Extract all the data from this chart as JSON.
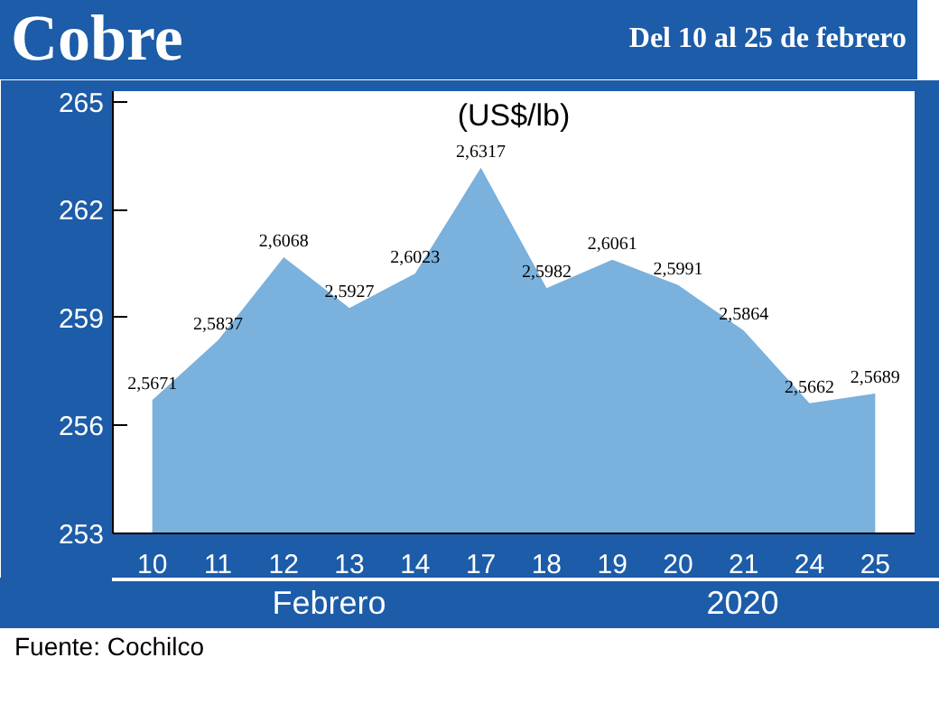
{
  "chart_data": {
    "type": "area",
    "title": "Cobre",
    "subtitle": "Del 10 al 25 de febrero",
    "ylabel": "(US$/lb)",
    "xlabel": "Febrero",
    "categories": [
      "10",
      "11",
      "12",
      "13",
      "14",
      "17",
      "18",
      "19",
      "20",
      "21",
      "24",
      "25"
    ],
    "series": [
      {
        "color": "#7ab1dd",
        "values": [
          256.71,
          258.37,
          260.68,
          259.27,
          260.23,
          263.17,
          259.82,
          260.61,
          259.91,
          258.64,
          256.62,
          256.89
        ],
        "value_labels": [
          "2,5671",
          "2,5837",
          "2,6068",
          "2,5927",
          "2,6023",
          "2,6317",
          "2,5982",
          "2,6061",
          "2,5991",
          "2,5864",
          "2,5662",
          "2,5689"
        ]
      }
    ],
    "ylim": [
      253,
      265.3
    ],
    "yticks": [
      253,
      256,
      259,
      262,
      265
    ],
    "annotations": [
      "2020",
      "Fuente: Cochilco"
    ]
  }
}
